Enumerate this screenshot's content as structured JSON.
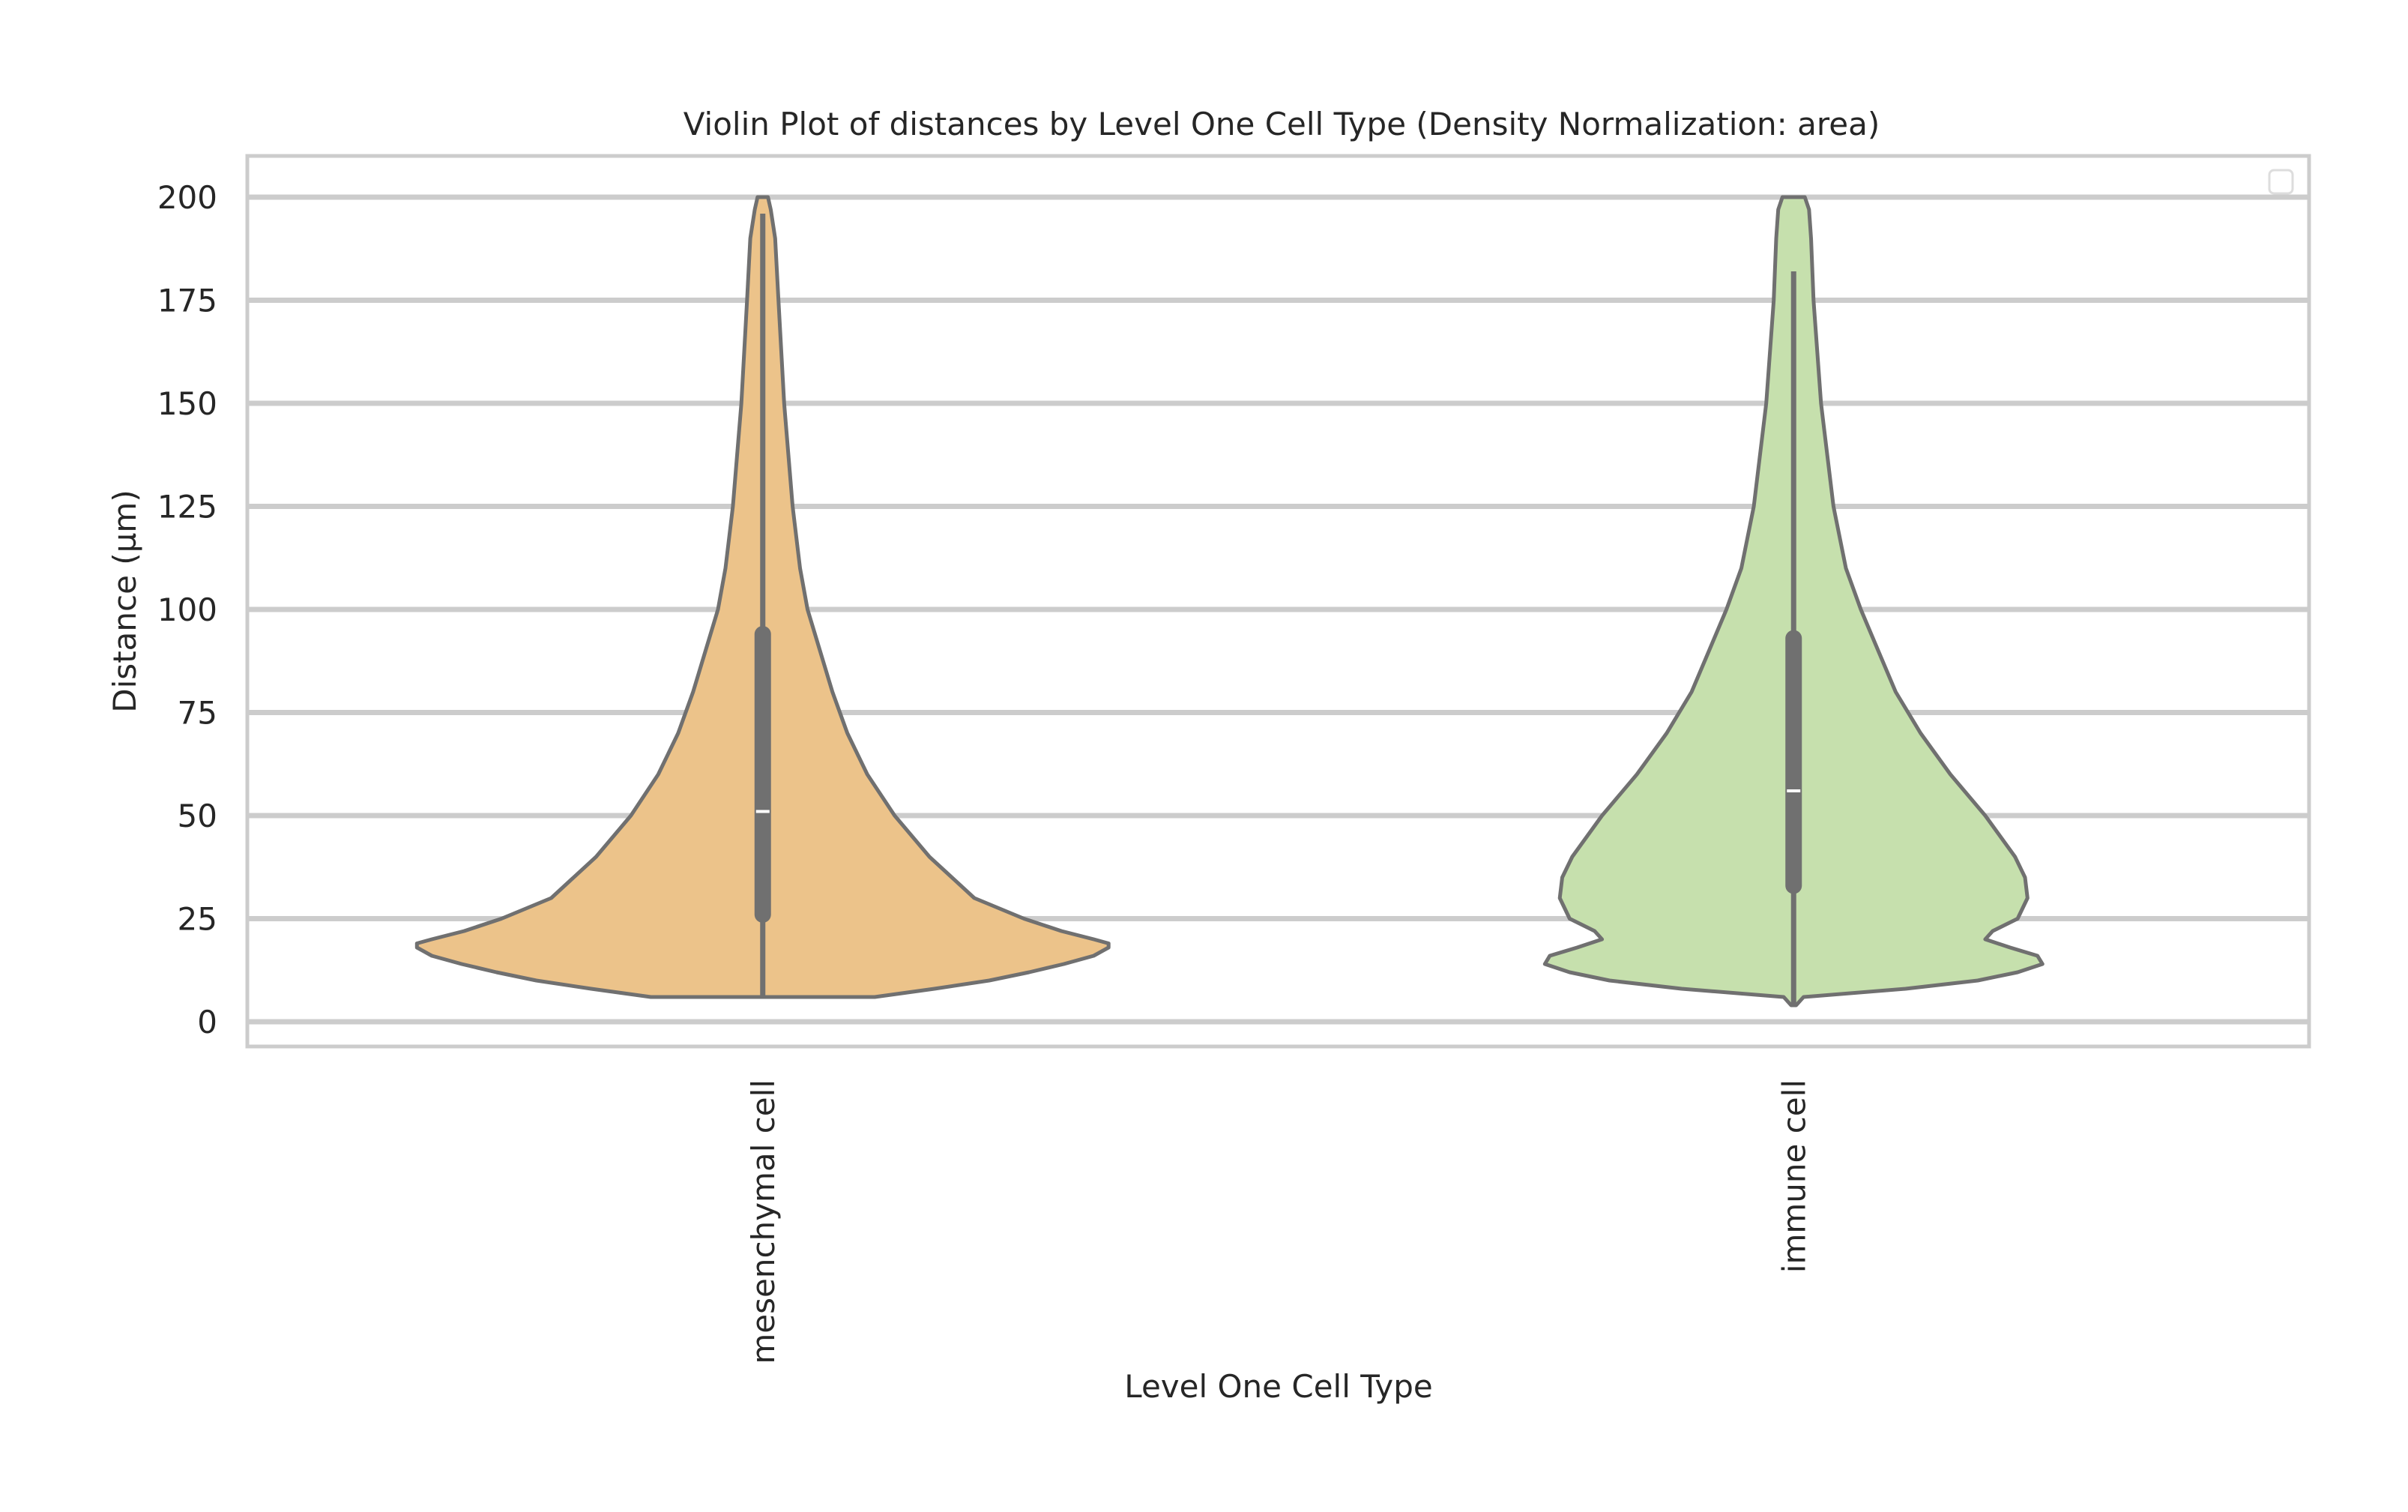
{
  "chart_data": {
    "type": "violin",
    "title": "Violin Plot of distances by Level One Cell Type (Density Normalization: area)",
    "xlabel": "Level One Cell Type",
    "ylabel": "Distance (µm)",
    "ylim": [
      -6,
      210
    ],
    "yticks": [
      0,
      25,
      50,
      75,
      100,
      125,
      150,
      175,
      200
    ],
    "grid": true,
    "legend": "top-right (empty)",
    "categories": [
      "mesenchymal cell",
      "immune cell"
    ],
    "series": [
      {
        "category": "mesenchymal cell",
        "color": "#ecc38a",
        "min": 6,
        "max": 200,
        "whisker_low": 6,
        "whisker_high": 196,
        "q1": 26,
        "median": 51,
        "q3": 94,
        "density_profile": [
          [
            6,
            0.45
          ],
          [
            8,
            0.69
          ],
          [
            10,
            0.91
          ],
          [
            12,
            1.07
          ],
          [
            14,
            1.21
          ],
          [
            16,
            1.33
          ],
          [
            18,
            1.39
          ],
          [
            19,
            1.39
          ],
          [
            20,
            1.33
          ],
          [
            22,
            1.2
          ],
          [
            25,
            1.05
          ],
          [
            30,
            0.85
          ],
          [
            40,
            0.67
          ],
          [
            50,
            0.53
          ],
          [
            60,
            0.42
          ],
          [
            70,
            0.34
          ],
          [
            80,
            0.28
          ],
          [
            90,
            0.23
          ],
          [
            100,
            0.18
          ],
          [
            110,
            0.15
          ],
          [
            125,
            0.12
          ],
          [
            150,
            0.086
          ],
          [
            175,
            0.063
          ],
          [
            190,
            0.05
          ],
          [
            197,
            0.032
          ],
          [
            200,
            0.021
          ]
        ]
      },
      {
        "category": "immune cell",
        "color": "#c6e0ad",
        "min": 4,
        "max": 200,
        "whisker_low": 4,
        "whisker_high": 182,
        "q1": 33,
        "median": 56,
        "q3": 93,
        "density_profile": [
          [
            4,
            0.01
          ],
          [
            6,
            0.04
          ],
          [
            8,
            0.45
          ],
          [
            10,
            0.74
          ],
          [
            12,
            0.9
          ],
          [
            14,
            1.0
          ],
          [
            16,
            0.98
          ],
          [
            18,
            0.87
          ],
          [
            20,
            0.77
          ],
          [
            22,
            0.8
          ],
          [
            25,
            0.9
          ],
          [
            30,
            0.94
          ],
          [
            35,
            0.93
          ],
          [
            40,
            0.89
          ],
          [
            50,
            0.77
          ],
          [
            60,
            0.63
          ],
          [
            70,
            0.51
          ],
          [
            80,
            0.41
          ],
          [
            90,
            0.34
          ],
          [
            100,
            0.27
          ],
          [
            110,
            0.21
          ],
          [
            125,
            0.16
          ],
          [
            150,
            0.11
          ],
          [
            175,
            0.08
          ],
          [
            190,
            0.07
          ],
          [
            197,
            0.062
          ],
          [
            200,
            0.045
          ]
        ]
      }
    ]
  }
}
